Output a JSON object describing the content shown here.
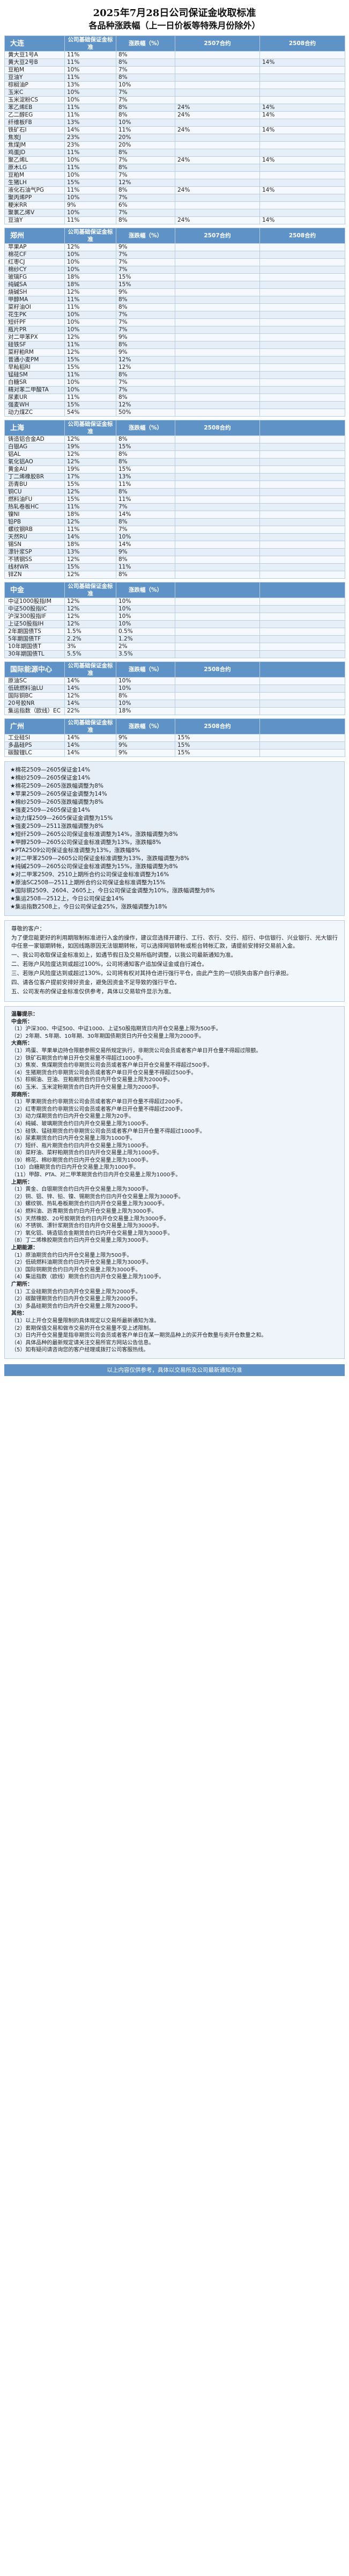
{
  "doc": {
    "title": "2025年7月28日公司保证金收取标准",
    "subtitle": "各品种涨跌幅（上一日价板等特殊月份除外）"
  },
  "columns": {
    "company_margin": "公司基础保证金标准",
    "limit": "涨跌幅（%）"
  },
  "exchanges": [
    {
      "name": "大连",
      "extra_cols": [
        "2507合约",
        "2508合约"
      ],
      "rows": [
        [
          "黄大豆1号A",
          "11%",
          "8%",
          "",
          ""
        ],
        [
          "黄大豆2号B",
          "11%",
          "8%",
          "",
          "14%"
        ],
        [
          "豆粕M",
          "10%",
          "7%",
          "",
          ""
        ],
        [
          "豆油Y",
          "11%",
          "8%",
          "",
          ""
        ],
        [
          "棕榈油P",
          "13%",
          "10%",
          "",
          ""
        ],
        [
          "玉米C",
          "10%",
          "7%",
          "",
          ""
        ],
        [
          "玉米淀粉CS",
          "10%",
          "7%",
          "",
          ""
        ],
        [
          "苯乙烯EB",
          "11%",
          "8%",
          "24%",
          "14%"
        ],
        [
          "乙二醇EG",
          "11%",
          "8%",
          "24%",
          "14%"
        ],
        [
          "纤维板FB",
          "13%",
          "10%",
          "",
          ""
        ],
        [
          "铁矿石I",
          "14%",
          "11%",
          "24%",
          "14%"
        ],
        [
          "焦炭J",
          "23%",
          "20%",
          "",
          ""
        ],
        [
          "焦煤JM",
          "23%",
          "20%",
          "",
          ""
        ],
        [
          "鸡蛋JD",
          "11%",
          "8%",
          "",
          ""
        ],
        [
          "聚乙烯L",
          "10%",
          "7%",
          "24%",
          "14%"
        ],
        [
          "原木LG",
          "11%",
          "8%",
          "",
          ""
        ],
        [
          "豆粕M",
          "10%",
          "7%",
          "",
          ""
        ],
        [
          "生猪LH",
          "15%",
          "12%",
          "",
          ""
        ],
        [
          "液化石油气PG",
          "11%",
          "8%",
          "24%",
          "14%"
        ],
        [
          "聚丙烯PP",
          "10%",
          "7%",
          "",
          ""
        ],
        [
          "粳米RR",
          "9%",
          "6%",
          "",
          ""
        ],
        [
          "聚氯乙烯V",
          "10%",
          "7%",
          "",
          ""
        ],
        [
          "豆油Y",
          "11%",
          "8%",
          "24%",
          "14%"
        ]
      ]
    },
    {
      "name": "郑州",
      "extra_cols": [
        "2507合约",
        "2508合约"
      ],
      "rows": [
        [
          "苹果AP",
          "12%",
          "9%",
          "",
          ""
        ],
        [
          "棉花CF",
          "10%",
          "7%",
          "",
          ""
        ],
        [
          "红枣CJ",
          "10%",
          "7%",
          "",
          ""
        ],
        [
          "棉纱CY",
          "10%",
          "7%",
          "",
          ""
        ],
        [
          "玻璃FG",
          "18%",
          "15%",
          "",
          ""
        ],
        [
          "纯碱SA",
          "18%",
          "15%",
          "",
          ""
        ],
        [
          "烧碱SH",
          "12%",
          "9%",
          "",
          ""
        ],
        [
          "甲醇MA",
          "11%",
          "8%",
          "",
          ""
        ],
        [
          "菜籽油OI",
          "11%",
          "8%",
          "",
          ""
        ],
        [
          "花生PK",
          "10%",
          "7%",
          "",
          ""
        ],
        [
          "短纤PF",
          "10%",
          "7%",
          "",
          ""
        ],
        [
          "瓶片PR",
          "10%",
          "7%",
          "",
          ""
        ],
        [
          "对二甲苯PX",
          "12%",
          "9%",
          "",
          ""
        ],
        [
          "硅铁SF",
          "11%",
          "8%",
          "",
          ""
        ],
        [
          "菜籽粕RM",
          "12%",
          "9%",
          "",
          ""
        ],
        [
          "普通小麦PM",
          "15%",
          "12%",
          "",
          ""
        ],
        [
          "早籼稻RI",
          "15%",
          "12%",
          "",
          ""
        ],
        [
          "锰硅SM",
          "11%",
          "8%",
          "",
          ""
        ],
        [
          "白糖SR",
          "10%",
          "7%",
          "",
          ""
        ],
        [
          "精对苯二甲酸TA",
          "10%",
          "7%",
          "",
          ""
        ],
        [
          "尿素UR",
          "11%",
          "8%",
          "",
          ""
        ],
        [
          "强麦WH",
          "15%",
          "12%",
          "",
          ""
        ],
        [
          "动力煤ZC",
          "54%",
          "50%",
          "",
          ""
        ]
      ]
    },
    {
      "name": "上海",
      "extra_cols": [
        "2508合约",
        ""
      ],
      "rows": [
        [
          "铸造铝合金AD",
          "12%",
          "8%",
          "",
          ""
        ],
        [
          "白银AG",
          "19%",
          "15%",
          "",
          ""
        ],
        [
          "铝AL",
          "12%",
          "8%",
          "",
          ""
        ],
        [
          "氧化铝AO",
          "12%",
          "8%",
          "",
          ""
        ],
        [
          "黄金AU",
          "19%",
          "15%",
          "",
          ""
        ],
        [
          "丁二烯橡胶BR",
          "17%",
          "13%",
          "",
          ""
        ],
        [
          "沥青BU",
          "15%",
          "11%",
          "",
          ""
        ],
        [
          "铜CU",
          "12%",
          "8%",
          "",
          ""
        ],
        [
          "燃料油FU",
          "15%",
          "11%",
          "",
          ""
        ],
        [
          "热轧卷板HC",
          "11%",
          "7%",
          "",
          ""
        ],
        [
          "镍NI",
          "18%",
          "14%",
          "",
          ""
        ],
        [
          "铅PB",
          "12%",
          "8%",
          "",
          ""
        ],
        [
          "螺纹钢RB",
          "11%",
          "7%",
          "",
          ""
        ],
        [
          "天然RU",
          "14%",
          "10%",
          "",
          ""
        ],
        [
          "锡SN",
          "18%",
          "14%",
          "",
          ""
        ],
        [
          "漂针浆SP",
          "13%",
          "9%",
          "",
          ""
        ],
        [
          "不锈钢SS",
          "12%",
          "8%",
          "",
          ""
        ],
        [
          "线材WR",
          "15%",
          "11%",
          "",
          ""
        ],
        [
          "锌ZN",
          "12%",
          "8%",
          "",
          ""
        ]
      ]
    },
    {
      "name": "中金",
      "extra_cols": [
        "",
        ""
      ],
      "rows": [
        [
          "中证1000股指IM",
          "12%",
          "10%",
          "",
          ""
        ],
        [
          "中证500股指IC",
          "12%",
          "10%",
          "",
          ""
        ],
        [
          "沪深300股指IF",
          "12%",
          "10%",
          "",
          ""
        ],
        [
          "上证50股指IH",
          "12%",
          "10%",
          "",
          ""
        ],
        [
          "2年期国债TS",
          "1.5%",
          "0.5%",
          "",
          ""
        ],
        [
          "5年期国债TF",
          "2.2%",
          "1.2%",
          "",
          ""
        ],
        [
          "10年期国债T",
          "3%",
          "2%",
          "",
          ""
        ],
        [
          "30年期国债TL",
          "5.5%",
          "3.5%",
          "",
          ""
        ]
      ]
    },
    {
      "name": "国际能源中心",
      "extra_cols": [
        "2508合约",
        ""
      ],
      "rows": [
        [
          "原油SC",
          "14%",
          "10%",
          "",
          ""
        ],
        [
          "低硫燃料油LU",
          "14%",
          "10%",
          "",
          ""
        ],
        [
          "国际铜BC",
          "12%",
          "8%",
          "",
          ""
        ],
        [
          "20号胶NR",
          "14%",
          "10%",
          "",
          ""
        ],
        [
          "集运指数（欧线）EC",
          "22%",
          "18%",
          "",
          ""
        ]
      ]
    },
    {
      "name": "广州",
      "extra_cols": [
        "2508合约",
        ""
      ],
      "rows": [
        [
          "工业硅SI",
          "14%",
          "9%",
          "15%",
          ""
        ],
        [
          "多晶硅PS",
          "14%",
          "9%",
          "15%",
          ""
        ],
        [
          "碳酸锂LC",
          "14%",
          "9%",
          "15%",
          ""
        ]
      ]
    }
  ],
  "notes": [
    "★棉花2509—2605保证金14%",
    "★棉纱2509—2605保证金14%",
    "★棉花2509—2605涨跌幅调整为8%",
    "★苹果2509—2605保证金调整为14%",
    "★棉纱2509—2605涨跌幅调整为8%",
    "★强麦2509—2605保证金14%",
    "★动力煤2509—2605保证金调整为15%",
    "★强麦2509—2511涨跌幅调整为8%",
    "★短纤2509—2605公司保证金标准调整为14%，涨跌幅调整为8%",
    "★甲醇2509—2605公司保证金标准调整为13%，涨跌幅8%",
    "★PTA2509公司保证金标准调整为13%，涨跌幅8%",
    "★对二甲苯2509—2605公司保证金标准调整为13%，涨跌幅调整为8%",
    "★纯碱2509—2605公司保证金标准调整为15%，涨跌幅调整为8%",
    "★对二甲苯2509、2510上期所合约公司保证金标准调整为16%",
    "★原油SC2508—2511上期所合约公司保证金标准调整为15%",
    "★国际铜2509、2604、2605上，今日公司保证金调整为10%，涨跌幅调整为8%",
    "★集运2508—2512上，今日公司保证金14%",
    "★集运指数2508上，今日公司保证金25%，涨跌幅调整为18%"
  ],
  "letter": [
    "尊敬的客户：",
    "为了便您能更好的利用期限制标准进行入金的操作，建议您选择开建行、工行、农行、交行、招行、中信银行、兴业银行、光大银行中任意一家银期转帐，如因线路原因无法银期转帐，可以选择网银转帐或柜台转帐汇款，请提前安排好交易前入金。",
    "一、我公司收取保证金标准如上，如遇节假日及交易所临时调整，以我公司最新通知为准。",
    "二、若账户风险度达到或超过100%，公司将通知客户追加保证金或自行减仓。",
    "三、若账户风险度达到或超过130%，公司将有权对其持仓进行强行平仓，由此产生的一切损失由客户自行承担。",
    "四、请各位客户提前安排好资金，避免因资金不足导致的强行平仓。",
    "五、公司发布的保证金标准仅供参考，具体以交易软件显示为准。"
  ],
  "rules_title": "温馨提示：",
  "rules": [
    "中金所：",
    "（1）沪深300、中证500、中证1000、上证50股指期货日内开仓交易量上限为500手。",
    "（2）2年期、5年期、10年期、30年期国债期货日内开仓交易量上限为2000手。",
    "大商所：",
    "（1）鸡蛋、苹果单边持仓限额参照交易所规定执行，非期货公司会员或者客户单日开仓量不得超过限额。",
    "（2）铁矿石期货合约单日开仓交易量不得超过1000手。",
    "（3）焦炭、焦煤期货合约非期货公司会员或者客户单日开仓交易量不得超过500手。",
    "（4）生猪期货合约非期货公司会员或者客户单日开仓交易量不得超过500手。",
    "（5）棕榈油、豆油、豆粕期货合约日内开仓交易量上限为2000手。",
    "（6）玉米、玉米淀粉期货合约日内开仓交易量上限为2000手。",
    "郑商所：",
    "（1）苹果期货合约非期货公司会员或者客户单日开仓量不得超过200手。",
    "（2）红枣期货合约非期货公司会员或者客户单日开仓量不得超过200手。",
    "（3）动力煤期货合约日内开仓交易量上限为20手。",
    "（4）纯碱、玻璃期货合约日内开仓交易量上限为1000手。",
    "（5）硅铁、锰硅期货合约非期货公司会员或者客户单日开仓量不得超过1000手。",
    "（6）尿素期货合约日内开仓交易量上限为1000手。",
    "（7）短纤、瓶片期货合约日内开仓交易量上限为1000手。",
    "（8）菜籽油、菜籽粕期货合约日内开仓交易量上限为1000手。",
    "（9）棉花、棉纱期货合约日内开仓交易量上限为1000手。",
    "（10）白糖期货合约日内开仓交易量上限为1000手。",
    "（11）甲醇、PTA、对二甲苯期货合约日内开仓交易量上限为1000手。",
    "上期所：",
    "（1）黄金、白银期货合约日内开仓交易量上限为3000手。",
    "（2）铜、铝、锌、铅、镍、锡期货合约日内开仓交易量上限为3000手。",
    "（3）螺纹钢、热轧卷板期货合约日内开仓交易量上限为3000手。",
    "（4）燃料油、沥青期货合约日内开仓交易量上限为3000手。",
    "（5）天然橡胶、20号胶期货合约日内开仓交易量上限为3000手。",
    "（6）不锈钢、漂针浆期货合约日内开仓交易量上限为3000手。",
    "（7）氧化铝、铸造铝合金期货合约日内开仓交易量上限为3000手。",
    "（8）丁二烯橡胶期货合约日内开仓交易量上限为3000手。",
    "上期能源：",
    "（1）原油期货合约日内开仓交易量上限为500手。",
    "（2）低硫燃料油期货合约日内开仓交易量上限为3000手。",
    "（3）国际铜期货合约日内开仓交易量上限为3000手。",
    "（4）集运指数（欧线）期货合约日内开仓交易量上限为100手。",
    "广期所：",
    "（1）工业硅期货合约日内开仓交易量上限为2000手。",
    "（2）碳酸锂期货合约日内开仓交易量上限为2000手。",
    "（3）多晶硅期货合约日内开仓交易量上限为2000手。",
    "其他：",
    "（1）以上开仓交易量限制的具体规定以交易所最新通知为准。",
    "（2）套期保值交易和做市交易的开仓交易量不受上述限制。",
    "（3）日内开仓交易量是指非期货公司会员或者客户单日在某一期货品种上的买开仓数量与卖开仓数量之和。",
    "（4）具体品种的最新规定请关注交易所官方网站公告信息。",
    "（5）如有疑问请咨询您的客户经理或拨打公司客服热线。"
  ],
  "footer": "以上内容仅供参考，具体以交易所及公司最新通知为准"
}
